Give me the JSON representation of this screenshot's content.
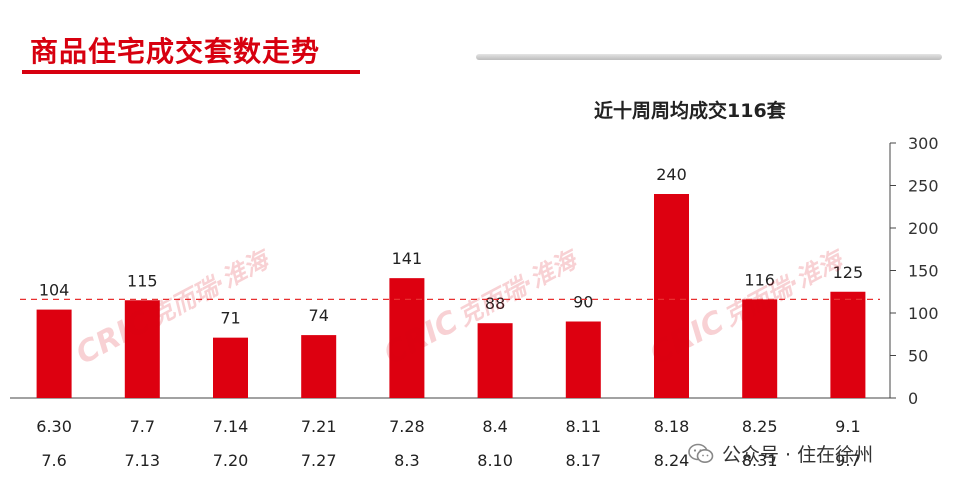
{
  "title": "商品住宅成交套数走势",
  "avg_note": "近十周周均成交116套",
  "source": {
    "label": "公众号 · 住在徐州"
  },
  "watermark": {
    "brand": "CRIC",
    "text": "克而瑞·淮海"
  },
  "colors": {
    "accent": "#d7000f",
    "bar": "#dd0010",
    "avg_line": "#e83030",
    "axis": "#333333"
  },
  "chart_data": {
    "type": "bar",
    "title": "",
    "categories": [
      [
        "6.30",
        "7.6"
      ],
      [
        "7.7",
        "7.13"
      ],
      [
        "7.14",
        "7.20"
      ],
      [
        "7.21",
        "7.27"
      ],
      [
        "7.28",
        "8.3"
      ],
      [
        "8.4",
        "8.10"
      ],
      [
        "8.11",
        "8.17"
      ],
      [
        "8.18",
        "8.24"
      ],
      [
        "8.25",
        "8.31"
      ],
      [
        "9.1",
        "9.7"
      ]
    ],
    "values": [
      104,
      115,
      71,
      74,
      141,
      88,
      90,
      240,
      116,
      125
    ],
    "average": 116,
    "ylim": [
      0,
      300
    ],
    "yticks": [
      0,
      50,
      100,
      150,
      200,
      250,
      300
    ],
    "y_axis_side": "right",
    "grid": false,
    "legend": "none",
    "data_labels": true
  }
}
